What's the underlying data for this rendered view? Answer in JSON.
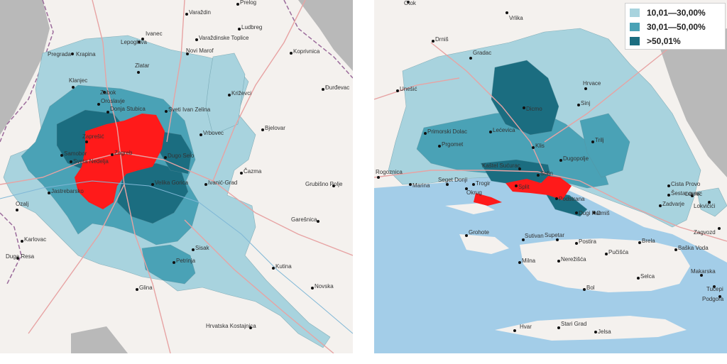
{
  "legend": {
    "items": [
      {
        "label": "10,01—30,00%",
        "color": "#a8d3de"
      },
      {
        "label": "30,01—50,00%",
        "color": "#4aa2b6"
      },
      {
        "label": ">50,01%",
        "color": "#1b6d80"
      }
    ]
  },
  "colors": {
    "low": "#a8d3de",
    "mid": "#4aa2b6",
    "high": "#1b6d80",
    "city": "#ff1a1a",
    "sea": "#a3cde8",
    "land": "#f4f1ee",
    "relief": "#b9b9b9",
    "road": "#e7a3a3"
  },
  "left_map": {
    "places": [
      "Krapina",
      "Pregrada",
      "Zlatar",
      "Klanjec",
      "Zabok",
      "Oroslavje",
      "Donja Stubica",
      "Sveti Ivan Zelina",
      "Križevci",
      "Vrbovec",
      "Bjelovar",
      "Zaprešić",
      "Samobor",
      "Sveta Nedelja",
      "Zagreb",
      "Dugo Selo",
      "Jastrebarsko",
      "Velika Gorica",
      "Ivanić-Grad",
      "Čazma",
      "Ozalj",
      "Karlovac",
      "Duga Resa",
      "Petrinja",
      "Sisak",
      "Glina",
      "Kutina",
      "Novska",
      "Hrvatska Kostajnica",
      "Garešnica",
      "Grubišno Polje",
      "Đurđevac",
      "Koprivnica",
      "Ludbreg",
      "Ivanec",
      "Lepoglava",
      "Varaždinske Toplice",
      "Novi Marof",
      "Varaždin",
      "Prelog"
    ]
  },
  "right_map": {
    "places": [
      "Otok",
      "Vrlika",
      "Drniš",
      "Gradac",
      "Unešić",
      "Hrvace",
      "Sinj",
      "Trilj",
      "Dicmo",
      "Lećevica",
      "Klis",
      "Primorski Dolac",
      "Prgomet",
      "Dugopolje",
      "Kaštel Sućurac",
      "Solin",
      "Trogir",
      "Okrug",
      "Seget Donji",
      "Marina",
      "Rogoznica",
      "Split",
      "Podstrana",
      "Dugi Rat",
      "Omiš",
      "Šestanovac",
      "Zadvarje",
      "Cista Provo",
      "Lovreć",
      "Lokvičići",
      "Zagvozd",
      "Brela",
      "Baška Voda",
      "Makarska",
      "Tučepi",
      "Podgora",
      "Grohote",
      "Sutivan",
      "Supetar",
      "Postira",
      "Pučišća",
      "Milna",
      "Nerežišća",
      "Selca",
      "Bol",
      "Hvar",
      "Stari Grad",
      "Jelsa"
    ]
  }
}
